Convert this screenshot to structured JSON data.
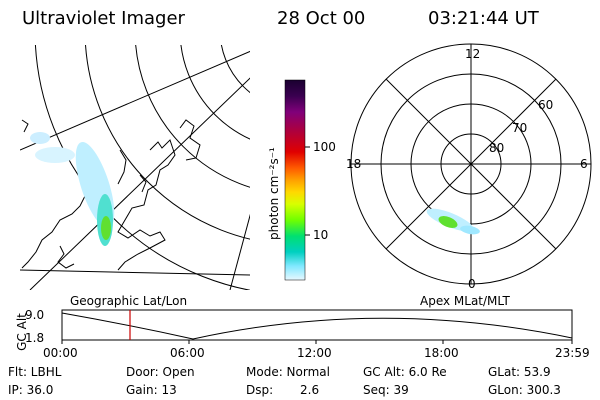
{
  "header": {
    "title": "Ultraviolet Imager",
    "date": "28 Oct 00",
    "time": "03:21:44 UT"
  },
  "colorbar": {
    "label": "photon cm⁻²s⁻¹",
    "ticks": [
      "100",
      "10"
    ]
  },
  "polar_plot": {
    "mlt_labels": {
      "top": "12",
      "left": "18",
      "right": "6",
      "bottom": "0"
    },
    "mlat_labels": [
      "60",
      "70",
      "80"
    ]
  },
  "map_labels": {
    "left": "Geographic Lat/Lon",
    "right": "Apex MLat/MLT"
  },
  "altitude_strip": {
    "axis_label": "GC Alt",
    "y_ticks": [
      "9.0",
      "1.8"
    ],
    "x_ticks": [
      "00:00",
      "06:00",
      "12:00",
      "18:00",
      "23:59"
    ]
  },
  "info": {
    "row1": {
      "flt": "Flt: LBHL",
      "door": "Door: Open",
      "mode": "Mode: Normal",
      "gc_alt": "GC Alt: 6.0 Re",
      "glat": "GLat: 53.9"
    },
    "row2": {
      "ip": "IP: 36.0",
      "gain": "Gain: 13",
      "dsp_label": "Dsp:",
      "dsp_value": "2.6",
      "seq": "Seq: 39",
      "glon": "GLon: 300.3"
    }
  },
  "colors": {
    "colorbar": [
      "#1a0030",
      "#3a0050",
      "#80007a",
      "#b0003a",
      "#e00000",
      "#ff5a00",
      "#ffa000",
      "#ffd800",
      "#d8ff00",
      "#70ff00",
      "#00e070",
      "#00d0c0",
      "#80e8ff",
      "#e8f8ff"
    ],
    "time_marker": "#cc0000"
  }
}
